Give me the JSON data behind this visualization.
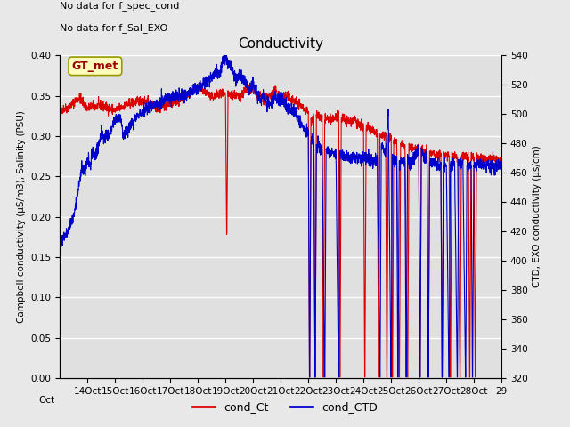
{
  "title": "Conductivity",
  "ylabel_left": "Campbell conductivity (μS/m3), Salinity (PSU)",
  "ylabel_right": "CTD, EXO conductivity (μs/cm)",
  "text_no_data_1": "No data for f_spec_cond",
  "text_no_data_2": "No data for f_Sal_EXO",
  "legend_label_gt": "GT_met",
  "legend_label_red": "cond_Ct",
  "legend_label_blue": "cond_CTD",
  "ylim_left": [
    0.0,
    0.4
  ],
  "ylim_right": [
    320,
    540
  ],
  "yticks_left": [
    0.0,
    0.05,
    0.1,
    0.15,
    0.2,
    0.25,
    0.3,
    0.35,
    0.4
  ],
  "yticks_right": [
    320,
    340,
    360,
    380,
    400,
    420,
    440,
    460,
    480,
    500,
    520,
    540
  ],
  "xtick_labels": [
    "14Oct",
    "15Oct",
    "16Oct",
    "17Oct",
    "18Oct",
    "19Oct",
    "20Oct",
    "21Oct",
    "22Oct",
    "23Oct",
    "24Oct",
    "25Oct",
    "26Oct",
    "27Oct",
    "28Oct",
    "29"
  ],
  "color_red": "#dd0000",
  "color_blue": "#0000cc",
  "fig_facecolor": "#e8e8e8",
  "plot_bg_color": "#e0e0e0",
  "grid_color": "#ffffff",
  "gt_box_facecolor": "#ffffbb",
  "gt_box_edgecolor": "#999900",
  "gt_text_color": "#990000",
  "title_fontsize": 11,
  "axis_label_fontsize": 7.5,
  "tick_fontsize": 7.5,
  "annotation_fontsize": 8
}
